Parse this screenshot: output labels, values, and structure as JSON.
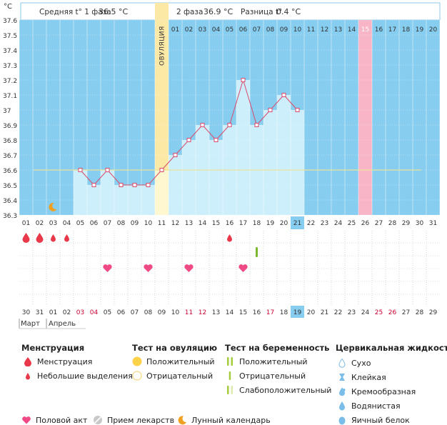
{
  "summary": {
    "phase1_label": "Средняя t° 1 фаза",
    "phase1_value": "36.5 °C",
    "phase2_label": "2 фаза",
    "phase2_value": "36.9 °C",
    "diff_label": "Разница t°",
    "diff_value": "0.4 °C"
  },
  "chart_data": {
    "type": "line",
    "unit_label": "°C",
    "y_ticks": [
      "37.6",
      "37.5",
      "37.4",
      "37.3",
      "37.2",
      "37.1",
      "37",
      "36.9",
      "36.8",
      "36.7",
      "36.6",
      "36.5",
      "36.4",
      "36.3"
    ],
    "ylim": [
      36.3,
      37.6
    ],
    "cycle_days": [
      "01",
      "02",
      "03",
      "04",
      "05",
      "06",
      "07",
      "08",
      "09",
      "10",
      "11",
      "12",
      "13",
      "14",
      "15",
      "16",
      "17",
      "18",
      "19",
      "20",
      "21",
      "22",
      "23",
      "24",
      "25",
      "26",
      "27",
      "28",
      "29",
      "30",
      "31"
    ],
    "top_days": [
      "01",
      "02",
      "03",
      "04",
      "05",
      "06",
      "07",
      "08",
      "09",
      "10",
      "11",
      "12",
      "13",
      "14",
      "15",
      "16",
      "17",
      "18",
      "19",
      "20"
    ],
    "top_days_start_index": 11,
    "temperatures": [
      null,
      null,
      null,
      null,
      36.6,
      36.5,
      36.6,
      36.5,
      36.5,
      36.5,
      36.6,
      36.7,
      36.8,
      36.9,
      36.8,
      36.9,
      37.2,
      36.9,
      37.0,
      37.1,
      37.0
    ],
    "cover_line": 36.6,
    "ovulation_label": "ОВУЛЯЦИЯ",
    "ovulation_day_index": 10,
    "highlight_day_index": 25,
    "today_cycle_index": 20,
    "calendar_dates": [
      "30",
      "31",
      "01",
      "02",
      "03",
      "04",
      "05",
      "06",
      "07",
      "08",
      "09",
      "10",
      "11",
      "12",
      "13",
      "14",
      "15",
      "16",
      "17",
      "18",
      "19",
      "20",
      "21",
      "22",
      "23",
      "24",
      "25",
      "26",
      "27",
      "28",
      "29"
    ],
    "red_date_indexes": [
      4,
      5,
      12,
      13,
      18,
      26,
      27
    ],
    "today_date_index": 20,
    "month_labels": [
      "Март",
      "Апрель"
    ],
    "menstruation": [
      {
        "day": 0,
        "size": "large"
      },
      {
        "day": 1,
        "size": "large"
      },
      {
        "day": 2,
        "size": "small"
      },
      {
        "day": 3,
        "size": "small"
      },
      {
        "day": 15,
        "size": "small"
      }
    ],
    "intercourse_days": [
      6,
      9,
      12,
      16
    ],
    "pregnancy_test_days": [
      17
    ],
    "moon_day_index": 2
  },
  "legend": {
    "menstruation": {
      "title": "Менструация",
      "items": [
        "Менструация",
        "Небольшие выделения"
      ]
    },
    "ovulation_test": {
      "title": "Тест на овуляцию",
      "items": [
        "Положительный",
        "Отрицательный"
      ]
    },
    "pregnancy_test": {
      "title": "Тест на беременность",
      "items": [
        "Положительный",
        "Отрицательный",
        "Слабоположительный"
      ]
    },
    "cervical": {
      "title": "Цервикальная жидкость",
      "items": [
        "Сухо",
        "Клейкая",
        "Кремообразная",
        "Водянистая",
        "Яичный белок"
      ]
    },
    "bottom": {
      "intercourse": "Половой акт",
      "medication": "Прием лекарств",
      "lunar": "Лунный календарь"
    }
  },
  "colors": {
    "sky": "#87cdef",
    "bar": "#cdeefb",
    "line": "#d94a6a",
    "ovulation": "#fde9a6",
    "highlight": "#f8b5c8",
    "today": "#87cdef",
    "red": "#cc0033",
    "drop": "#e8384a",
    "heart": "#ef4a86",
    "orange": "#f0a020",
    "pregnancy": "#7cb82e",
    "cervical": "#79bde8"
  }
}
